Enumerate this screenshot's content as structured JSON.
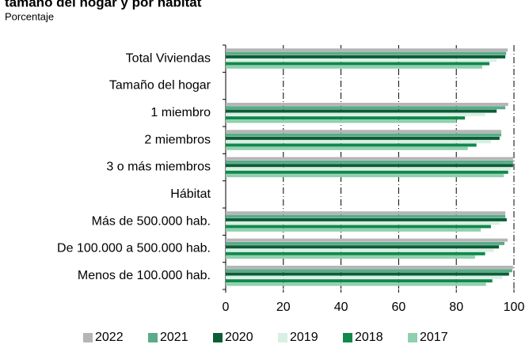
{
  "chart_data": {
    "type": "bar",
    "orientation": "horizontal",
    "title": "tamaño del hogar y por hábitat",
    "subtitle": "Porcentaje",
    "categories": [
      "Total Viviendas",
      "Tamaño del hogar",
      "1 miembro",
      "2 miembros",
      "3 o más miembros",
      "Hábitat",
      "Más de 500.000 hab.",
      "De 100.000 a 500.000 hab.",
      "Menos de 100.000 hab."
    ],
    "series": [
      {
        "name": "2022",
        "color": "#b5b5b5",
        "values": [
          97.8,
          null,
          98,
          95.6,
          99.7,
          null,
          97,
          97.8,
          99.7
        ]
      },
      {
        "name": "2021",
        "color": "#5aab89",
        "values": [
          97.3,
          null,
          97,
          95.6,
          99.7,
          null,
          97,
          96.7,
          99.4
        ]
      },
      {
        "name": "2020",
        "color": "#0b5d37",
        "values": [
          97,
          null,
          94,
          95,
          99.7,
          null,
          97.5,
          94.8,
          98.3
        ]
      },
      {
        "name": "2019",
        "color": "#d8efe3",
        "values": [
          94,
          null,
          90,
          92,
          99,
          null,
          95,
          93,
          96
        ]
      },
      {
        "name": "2018",
        "color": "#10894b",
        "values": [
          91.5,
          null,
          83,
          87,
          98,
          null,
          92,
          90,
          92.5
        ]
      },
      {
        "name": "2017",
        "color": "#8fd0ae",
        "values": [
          89,
          null,
          80,
          84,
          96.5,
          null,
          88.5,
          86.5,
          90.3
        ]
      }
    ],
    "xlim": [
      0,
      100
    ],
    "xticks": [
      0,
      20,
      40,
      60,
      80,
      100
    ],
    "grid": true,
    "legend": "bottom"
  }
}
